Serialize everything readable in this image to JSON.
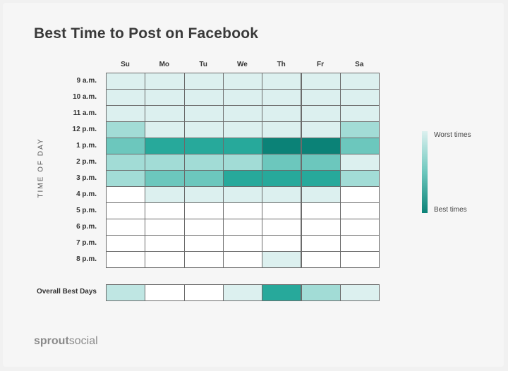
{
  "title": "Best Time to Post on Facebook",
  "chart_data": {
    "type": "heatmap",
    "title": "Best Time to Post on Facebook",
    "columns": [
      "Su",
      "Mo",
      "Tu",
      "We",
      "Th",
      "Fr",
      "Sa"
    ],
    "rows": [
      "9 a.m.",
      "10 a.m.",
      "11 a.m.",
      "12 p.m.",
      "1 p.m.",
      "2 p.m.",
      "3 p.m.",
      "4 p.m.",
      "5 p.m.",
      "6 p.m.",
      "7 p.m.",
      "8 p.m."
    ],
    "ylabel": "TIME OF DAY",
    "scale_note": "0 = worst times (white) to 5 = best times (dark teal)",
    "values": [
      [
        1,
        1,
        1,
        1,
        1,
        1,
        1
      ],
      [
        1,
        1,
        1,
        1,
        1,
        1,
        1
      ],
      [
        1,
        1,
        1,
        1,
        1,
        1,
        1
      ],
      [
        2,
        1,
        1,
        1,
        1,
        1,
        2
      ],
      [
        3,
        4,
        4,
        4,
        5,
        5,
        3
      ],
      [
        2,
        2,
        2,
        2,
        3,
        3,
        1
      ],
      [
        2,
        3,
        3,
        4,
        4,
        4,
        2
      ],
      [
        0,
        1,
        1,
        1,
        1,
        1,
        0
      ],
      [
        0,
        0,
        0,
        0,
        0,
        0,
        0
      ],
      [
        0,
        0,
        0,
        0,
        0,
        0,
        0
      ],
      [
        0,
        0,
        0,
        0,
        0,
        0,
        0
      ],
      [
        0,
        0,
        0,
        0,
        1,
        0,
        0
      ]
    ],
    "overall": {
      "label": "Overall Best Days",
      "values": [
        1.5,
        0,
        0,
        1,
        4,
        2,
        1
      ]
    },
    "legend": {
      "placement": "right",
      "top_label": "Worst times",
      "bottom_label": "Best times"
    },
    "colors": [
      "#ffffff",
      "#dcf0ef",
      "#a2dcd6",
      "#6cc7bd",
      "#27a99b",
      "#0b8277"
    ]
  },
  "brand": {
    "bold": "sprout",
    "regular": "social"
  }
}
